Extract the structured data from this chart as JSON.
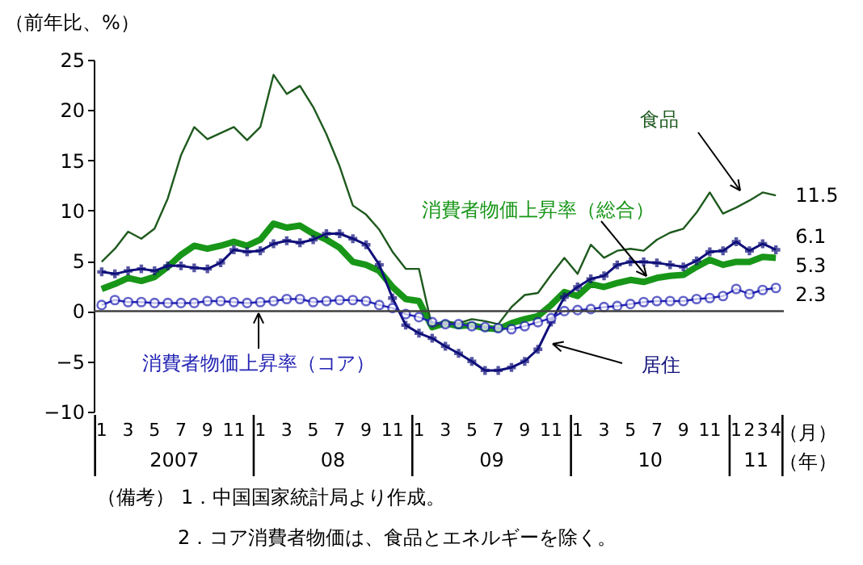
{
  "chart_data": {
    "type": "line",
    "ylabel": "（前年比、%）",
    "xlabel": "（月）",
    "categories": [
      "1",
      null,
      "3",
      null,
      "5",
      null,
      "7",
      null,
      "9",
      null,
      "11",
      null,
      "1",
      null,
      "3",
      null,
      "5",
      null,
      "7",
      null,
      "9",
      null,
      "11",
      null,
      "1",
      null,
      "3",
      null,
      "5",
      null,
      "7",
      null,
      "9",
      null,
      "11",
      null,
      "1",
      null,
      "3",
      null,
      "5",
      null,
      "7",
      null,
      "9",
      null,
      "11",
      null,
      "1",
      "2",
      "3",
      "4"
    ],
    "ylim": [
      -10,
      25
    ],
    "yticks": [
      -10,
      -5,
      0,
      5,
      10,
      15,
      20,
      25
    ],
    "grid": false,
    "series": [
      {
        "name": "食品",
        "color": "#1e5a1e",
        "marker": "none",
        "values": [
          4.9,
          6.2,
          7.9,
          7.2,
          8.2,
          11.2,
          15.5,
          18.3,
          17.1,
          17.7,
          18.3,
          17.0,
          18.3,
          23.5,
          21.6,
          22.4,
          20.3,
          17.6,
          14.4,
          10.5,
          9.6,
          8.1,
          5.9,
          4.2,
          4.2,
          -1.6,
          -1.1,
          -1.2,
          -0.8,
          -1.0,
          -1.3,
          0.4,
          1.6,
          1.8,
          3.6,
          5.3,
          3.7,
          6.6,
          5.3,
          6.0,
          6.2,
          6.0,
          7.1,
          7.8,
          8.2,
          9.8,
          11.8,
          9.7,
          10.3,
          11.0,
          11.8,
          11.5
        ],
        "value_labels": [
          null,
          null,
          null,
          null,
          null,
          null,
          null,
          null,
          null,
          null,
          null,
          null,
          null,
          null,
          null,
          null,
          null,
          null,
          null,
          null,
          null,
          null,
          null,
          null,
          null,
          null,
          null,
          null,
          null,
          null,
          null,
          null,
          null,
          null,
          null,
          null,
          null,
          null,
          null,
          null,
          null,
          null,
          null,
          null,
          null,
          null,
          null,
          null,
          null,
          null,
          null,
          "11.5"
        ]
      },
      {
        "name": "居住",
        "color": "#10107a",
        "marker": "cross",
        "values": [
          3.9,
          3.7,
          4.0,
          4.2,
          4.0,
          4.5,
          4.5,
          4.3,
          4.2,
          4.8,
          6.1,
          5.9,
          6.0,
          6.7,
          7.0,
          6.8,
          7.1,
          7.7,
          7.7,
          7.2,
          6.6,
          4.6,
          1.3,
          -1.4,
          -2.2,
          -2.7,
          -3.5,
          -4.2,
          -5.0,
          -5.9,
          -5.9,
          -5.6,
          -5.0,
          -3.8,
          -1.1,
          1.4,
          2.4,
          3.2,
          3.5,
          4.6,
          4.9,
          4.9,
          4.8,
          4.6,
          4.4,
          5.0,
          5.9,
          6.0,
          6.9,
          6.0,
          6.7,
          6.1
        ],
        "value_labels": [
          null,
          null,
          null,
          null,
          null,
          null,
          null,
          null,
          null,
          null,
          null,
          null,
          null,
          null,
          null,
          null,
          null,
          null,
          null,
          null,
          null,
          null,
          null,
          null,
          null,
          null,
          null,
          null,
          null,
          null,
          null,
          null,
          null,
          null,
          null,
          null,
          null,
          null,
          null,
          null,
          null,
          null,
          null,
          null,
          null,
          null,
          null,
          null,
          null,
          null,
          null,
          "6.1"
        ]
      },
      {
        "name": "消費者物価上昇率（総合）",
        "color": "#189618",
        "marker": "none",
        "values": [
          2.2,
          2.7,
          3.3,
          3.0,
          3.4,
          4.4,
          5.6,
          6.5,
          6.2,
          6.5,
          6.9,
          6.5,
          7.1,
          8.7,
          8.3,
          8.5,
          7.7,
          7.1,
          6.3,
          4.9,
          4.6,
          4.0,
          2.4,
          1.2,
          1.0,
          -1.6,
          -1.2,
          -1.5,
          -1.4,
          -1.7,
          -1.8,
          -1.2,
          -0.8,
          -0.5,
          0.6,
          1.9,
          1.5,
          2.7,
          2.4,
          2.8,
          3.1,
          2.9,
          3.3,
          3.5,
          3.6,
          4.4,
          5.1,
          4.6,
          4.9,
          4.9,
          5.4,
          5.3
        ],
        "value_labels": [
          null,
          null,
          null,
          null,
          null,
          null,
          null,
          null,
          null,
          null,
          null,
          null,
          null,
          null,
          null,
          null,
          null,
          null,
          null,
          null,
          null,
          null,
          null,
          null,
          null,
          null,
          null,
          null,
          null,
          null,
          null,
          null,
          null,
          null,
          null,
          null,
          null,
          null,
          null,
          null,
          null,
          null,
          null,
          null,
          null,
          null,
          null,
          null,
          null,
          null,
          null,
          "5.3"
        ]
      },
      {
        "name": "消費者物価上昇率（コア）",
        "color": "#2424b4",
        "marker": "circle",
        "values": [
          0.6,
          1.1,
          0.9,
          0.9,
          0.8,
          0.8,
          0.8,
          0.8,
          1.0,
          1.0,
          0.9,
          0.8,
          0.9,
          1.0,
          1.2,
          1.2,
          0.9,
          1.0,
          1.1,
          1.1,
          1.0,
          0.6,
          0.3,
          -0.3,
          -0.6,
          -1.1,
          -1.3,
          -1.3,
          -1.5,
          -1.6,
          -1.7,
          -1.8,
          -1.5,
          -1.1,
          -0.7,
          0.0,
          0.1,
          0.2,
          0.4,
          0.5,
          0.7,
          0.9,
          1.0,
          1.0,
          1.0,
          1.2,
          1.3,
          1.5,
          2.2,
          1.7,
          2.1,
          2.3
        ],
        "value_labels": [
          null,
          null,
          null,
          null,
          null,
          null,
          null,
          null,
          null,
          null,
          null,
          null,
          null,
          null,
          null,
          null,
          null,
          null,
          null,
          null,
          null,
          null,
          null,
          null,
          null,
          null,
          null,
          null,
          null,
          null,
          null,
          null,
          null,
          null,
          null,
          null,
          null,
          null,
          null,
          null,
          null,
          null,
          null,
          null,
          null,
          null,
          null,
          null,
          null,
          null,
          null,
          "2.3"
        ]
      }
    ],
    "ref_lines": [
      {
        "axis": "y",
        "value": 0,
        "color": "#404040"
      }
    ],
    "annotations": [
      "2007",
      "08",
      "09",
      "10",
      "11",
      "（年）",
      "（備考）",
      "1．中国国家統計局より作成。",
      "2．コア消費者物価は、食品とエネルギーを除く。"
    ]
  }
}
